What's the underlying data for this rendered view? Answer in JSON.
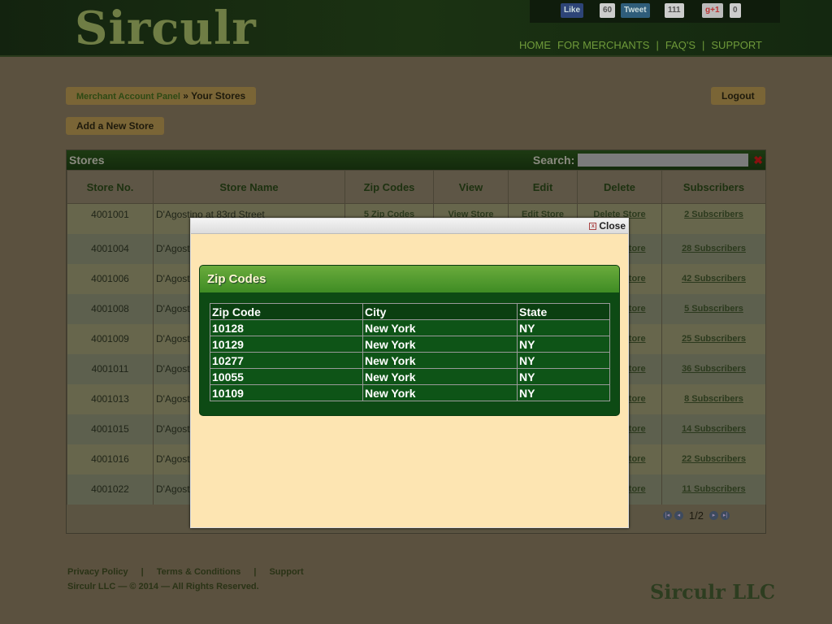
{
  "header": {
    "logo": "Sirculr",
    "social": {
      "like": "Like",
      "like_count": "60",
      "tweet": "Tweet",
      "tweet_count": "111",
      "gplus": "g+1",
      "gplus_count": "0"
    },
    "nav": [
      "HOME",
      "FOR MERCHANTS",
      "FAQ'S",
      "SUPPORT"
    ]
  },
  "breadcrumb": {
    "parent": "Merchant Account Panel",
    "sep": "»",
    "current": "Your Stores"
  },
  "logout": "Logout",
  "add_store": "Add a New Store",
  "stores": {
    "title": "Stores",
    "search_label": "Search:",
    "search_value": "",
    "columns": [
      "Store No.",
      "Store Name",
      "Zip Codes",
      "View",
      "Edit",
      "Delete",
      "Subscribers"
    ],
    "rows": [
      {
        "no": "4001001",
        "name": "D'Agostino at 83rd Street",
        "zip": "5 Zip Codes",
        "view": "View Store",
        "edit": "Edit Store",
        "del": "Delete Store",
        "subs": "2 Subscribers"
      },
      {
        "no": "4001004",
        "name": "D'Agosti",
        "zip": "",
        "view": "",
        "edit": "",
        "del": "Delete Store",
        "subs": "28 Subscribers"
      },
      {
        "no": "4001006",
        "name": "D'Agosti",
        "zip": "",
        "view": "",
        "edit": "",
        "del": "Delete Store",
        "subs": "42 Subscribers"
      },
      {
        "no": "4001008",
        "name": "D'Agosti",
        "zip": "",
        "view": "",
        "edit": "",
        "del": "Delete Store",
        "subs": "5 Subscribers"
      },
      {
        "no": "4001009",
        "name": "D'Agosti",
        "zip": "",
        "view": "",
        "edit": "",
        "del": "Delete Store",
        "subs": "25 Subscribers"
      },
      {
        "no": "4001011",
        "name": "D'Agosti",
        "zip": "",
        "view": "",
        "edit": "",
        "del": "Delete Store",
        "subs": "36 Subscribers"
      },
      {
        "no": "4001013",
        "name": "D'Agosti",
        "zip": "",
        "view": "",
        "edit": "",
        "del": "Delete Store",
        "subs": "8 Subscribers"
      },
      {
        "no": "4001015",
        "name": "D'Agosti",
        "zip": "",
        "view": "",
        "edit": "",
        "del": "Delete Store",
        "subs": "14 Subscribers"
      },
      {
        "no": "4001016",
        "name": "D'Agosti",
        "zip": "",
        "view": "",
        "edit": "",
        "del": "Delete Store",
        "subs": "22 Subscribers"
      },
      {
        "no": "4001022",
        "name": "D'Agosti",
        "zip": "",
        "view": "",
        "edit": "",
        "del": "Delete Store",
        "subs": "11 Subscribers"
      }
    ],
    "page": "1/2"
  },
  "modal": {
    "close": "Close",
    "title": "Zip Codes",
    "columns": [
      "Zip Code",
      "City",
      "State"
    ],
    "rows": [
      [
        "10128",
        "New York",
        "NY"
      ],
      [
        "10129",
        "New York",
        "NY"
      ],
      [
        "10277",
        "New York",
        "NY"
      ],
      [
        "10055",
        "New York",
        "NY"
      ],
      [
        "10109",
        "New York",
        "NY"
      ]
    ]
  },
  "footer": {
    "links": [
      "Privacy Policy",
      "|",
      "Terms & Conditions",
      "|",
      "Support"
    ],
    "copyright": "Sirculr LLC — © 2014 — All Rights Reserved.",
    "logo": "Sirculr LLC"
  }
}
